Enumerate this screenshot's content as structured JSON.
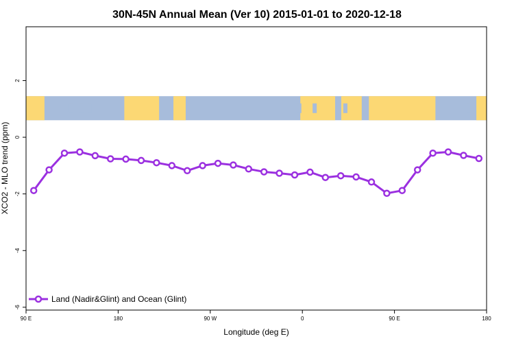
{
  "chart_data": {
    "type": "line",
    "title": "30N-45N Annual Mean (Ver 10)   2015-01-01 to 2020-12-18",
    "xlabel": "Longitude (deg E)",
    "ylabel": "XCO2 - MLO trend (ppm)",
    "x_ticks": [
      {
        "value": 90,
        "label": "90 E"
      },
      {
        "value": 180,
        "label": "180"
      },
      {
        "value": 270,
        "label": "90 W"
      },
      {
        "value": 360,
        "label": "0"
      },
      {
        "value": 450,
        "label": "90 E"
      },
      {
        "value": 540,
        "label": "180"
      }
    ],
    "y_ticks": [
      {
        "value": 2,
        "label": "2"
      },
      {
        "value": 0,
        "label": "0"
      },
      {
        "value": -2,
        "label": "-2"
      },
      {
        "value": -4,
        "label": "-4"
      },
      {
        "value": -6,
        "label": "-6"
      }
    ],
    "xlim": [
      90,
      540
    ],
    "ylim": [
      -6.1,
      3.9
    ],
    "grid": false,
    "legend_position": "bottom-left",
    "colors": {
      "series": "#9b30e0",
      "ocean": "#a7bcdb",
      "land": "#fcd874"
    },
    "map_strip": {
      "description_band_y_range": [
        0.6,
        1.45
      ]
    },
    "series": [
      {
        "name": "Land (Nadir&Glint) and Ocean (Glint)",
        "x": [
          97.5,
          112.5,
          127.5,
          142.5,
          157.5,
          172.5,
          187.5,
          202.5,
          217.5,
          232.5,
          247.5,
          262.5,
          277.5,
          292.5,
          307.5,
          322.5,
          337.5,
          352.5,
          367.5,
          382.5,
          397.5,
          412.5,
          427.5,
          442.5,
          457.5,
          472.5,
          487.5,
          502.5,
          517.5,
          532.5
        ],
        "values": [
          -1.88,
          -1.15,
          -0.56,
          -0.52,
          -0.65,
          -0.76,
          -0.77,
          -0.82,
          -0.9,
          -1.0,
          -1.18,
          -1.0,
          -0.92,
          -0.98,
          -1.12,
          -1.22,
          -1.27,
          -1.33,
          -1.23,
          -1.42,
          -1.36,
          -1.4,
          -1.58,
          -1.98,
          -1.88,
          -1.15,
          -0.56,
          -0.52,
          -0.64,
          -0.75
        ]
      }
    ]
  }
}
